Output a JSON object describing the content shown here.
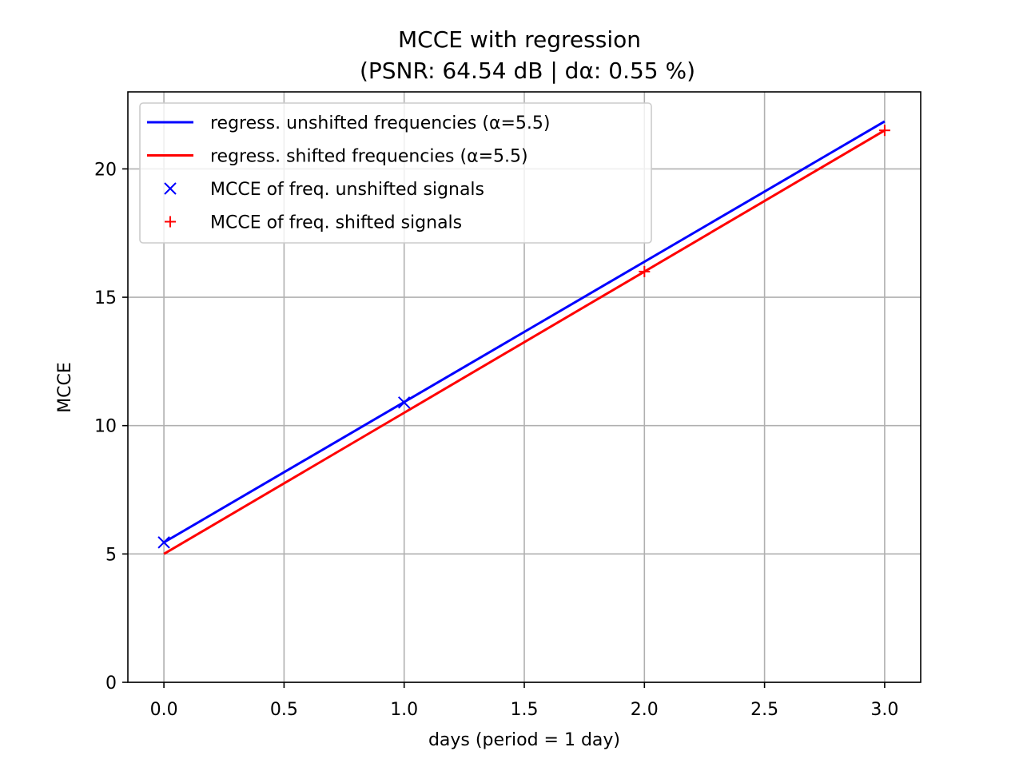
{
  "chart_data": {
    "type": "line",
    "title": "MCCE with regression",
    "subtitle": "(PSNR: 64.54 dB | dα: 0.55 %)",
    "xlabel": "days (period = 1 day)",
    "ylabel": "MCCE",
    "xlim": [
      -0.15,
      3.15
    ],
    "ylim": [
      0,
      23
    ],
    "x_ticks": [
      0.0,
      0.5,
      1.0,
      1.5,
      2.0,
      2.5,
      3.0
    ],
    "x_tick_labels": [
      "0.0",
      "0.5",
      "1.0",
      "1.5",
      "2.0",
      "2.5",
      "3.0"
    ],
    "y_ticks": [
      0,
      5,
      10,
      15,
      20
    ],
    "y_tick_labels": [
      "0",
      "5",
      "10",
      "15",
      "20"
    ],
    "grid": true,
    "legend_position": "top-left",
    "series": [
      {
        "name": "regress. unshifted frequencies (α=5.5)",
        "kind": "line",
        "color": "#0000ff",
        "x": [
          0,
          3
        ],
        "y": [
          5.45,
          21.85
        ]
      },
      {
        "name": "regress. shifted frequencies (α=5.5)",
        "kind": "line",
        "color": "#ff0000",
        "x": [
          0,
          3
        ],
        "y": [
          5.0,
          21.5
        ]
      },
      {
        "name": "MCCE of freq. unshifted signals",
        "kind": "marker",
        "marker": "x",
        "color": "#0000ff",
        "x": [
          0,
          1
        ],
        "y": [
          5.45,
          10.9
        ]
      },
      {
        "name": "MCCE of freq. shifted signals",
        "kind": "marker",
        "marker": "+",
        "color": "#ff0000",
        "x": [
          2,
          3
        ],
        "y": [
          16.0,
          21.5
        ]
      }
    ]
  }
}
